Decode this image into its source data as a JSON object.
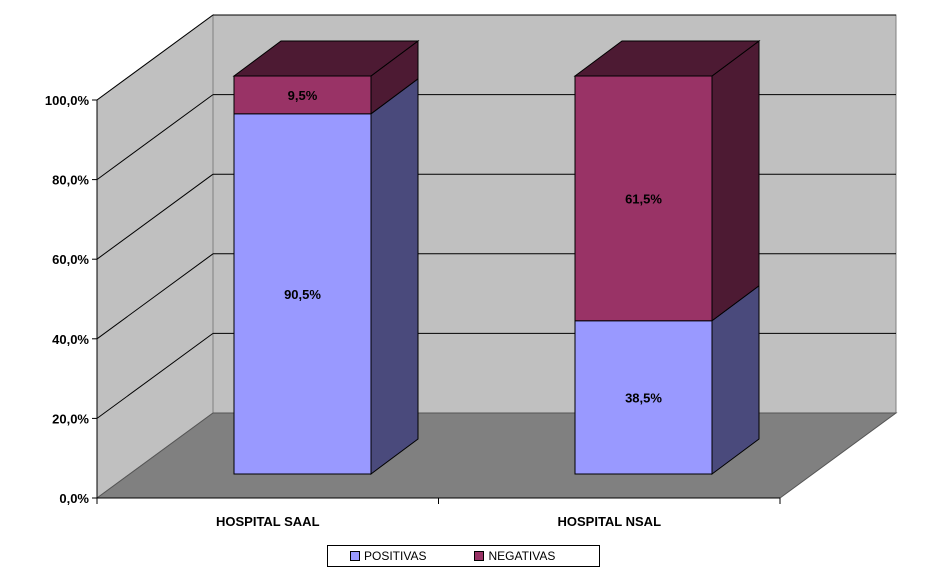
{
  "chart_data": {
    "type": "bar",
    "stacked": true,
    "style": "3d-stacked-column",
    "categories": [
      "HOSPITAL SAAL",
      "HOSPITAL NSAL"
    ],
    "series": [
      {
        "name": "POSITIVAS",
        "values": [
          90.5,
          38.5
        ],
        "labels": [
          "90,5%",
          "38,5%"
        ],
        "color": "#9999ff",
        "side_color": "#4a4a7c"
      },
      {
        "name": "NEGATIVAS",
        "values": [
          9.5,
          61.5
        ],
        "labels": [
          "9,5%",
          "61,5%"
        ],
        "color": "#993366",
        "side_color": "#4d1a33"
      }
    ],
    "yticks": [
      "0,0%",
      "20,0%",
      "40,0%",
      "60,0%",
      "80,0%",
      "100,0%"
    ],
    "ylim": [
      0,
      100
    ],
    "title": "",
    "xlabel": "",
    "ylabel": "",
    "grid": true,
    "legend": "bottom",
    "colors": {
      "wall": "#c0c0c0",
      "floor": "#808080",
      "gridline": "#000000"
    }
  }
}
